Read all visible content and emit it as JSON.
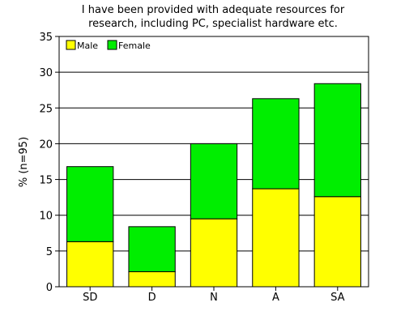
{
  "chart_data": {
    "type": "bar",
    "stacked": true,
    "title_lines": [
      "I have been provided with adequate resources for",
      "research, including PC, specialist hardware etc."
    ],
    "xlabel": "",
    "ylabel": "% (n=95)",
    "ylim": [
      0,
      35
    ],
    "yticks": [
      0,
      5,
      10,
      15,
      20,
      25,
      30,
      35
    ],
    "grid": true,
    "legend_position": "top-left",
    "categories": [
      "SD",
      "D",
      "N",
      "A",
      "SA"
    ],
    "series": [
      {
        "name": "Male",
        "color": "#ffff00",
        "values": [
          6.3,
          2.1,
          9.5,
          13.7,
          12.6
        ]
      },
      {
        "name": "Female",
        "color": "#00ee00",
        "values": [
          10.5,
          6.3,
          10.5,
          12.6,
          15.8
        ]
      }
    ]
  }
}
